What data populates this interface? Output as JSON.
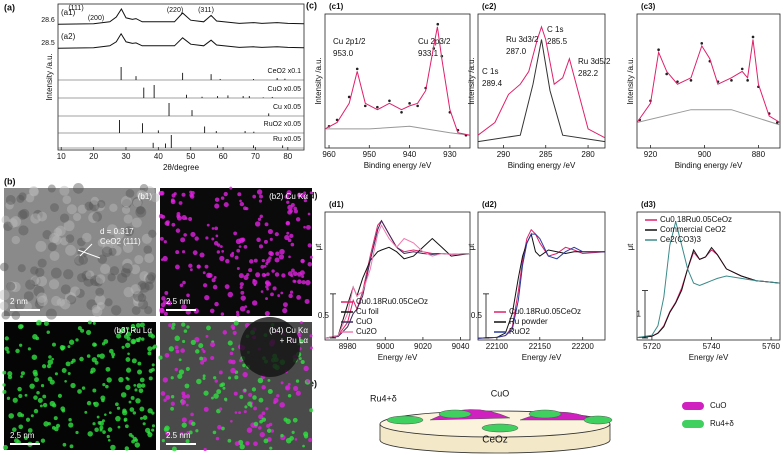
{
  "panel_a": {
    "label": "(a)",
    "xlabel": "2θ/degree",
    "ylabel": "Intensity /a.u.",
    "xlim": [
      9,
      85
    ],
    "xticks": [
      10,
      20,
      30,
      40,
      50,
      60,
      70,
      80
    ],
    "peak_labels": [
      "(111)",
      "28.6",
      "(200)",
      "(220)",
      "(311)",
      "28.5"
    ],
    "curves": [
      {
        "name": "(a1)",
        "x": [
          9,
          20,
          25,
          27,
          28.6,
          30,
          32,
          33.1,
          35,
          45,
          47.5,
          50,
          54,
          56.3,
          58,
          65,
          69.4,
          72,
          76.7,
          80,
          85
        ],
        "values": [
          0.05,
          0.08,
          0.2,
          0.5,
          1.0,
          0.45,
          0.35,
          0.4,
          0.2,
          0.2,
          0.75,
          0.3,
          0.2,
          0.6,
          0.25,
          0.1,
          0.15,
          0.1,
          0.15,
          0.1,
          0.08
        ]
      },
      {
        "name": "(a2)",
        "x": [
          9,
          20,
          25,
          27,
          28.5,
          30,
          32,
          33.1,
          35,
          45,
          47.5,
          50,
          54,
          56.3,
          58,
          65,
          69.4,
          72,
          76.7,
          80,
          85
        ],
        "values": [
          0.05,
          0.08,
          0.2,
          0.45,
          0.95,
          0.45,
          0.35,
          0.38,
          0.2,
          0.2,
          0.7,
          0.3,
          0.2,
          0.55,
          0.25,
          0.1,
          0.14,
          0.1,
          0.14,
          0.1,
          0.08
        ]
      }
    ],
    "references": [
      {
        "name": "CeO2 x0.1",
        "positions": [
          28.5,
          33.1,
          47.5,
          56.3,
          59.1,
          69.4,
          76.7,
          79.1
        ],
        "heights": [
          100,
          30,
          55,
          45,
          8,
          8,
          15,
          10
        ]
      },
      {
        "name": "CuO x0.05",
        "positions": [
          35.5,
          38.7,
          48.7,
          53.5,
          58.3,
          61.5,
          66.2,
          68.1,
          72.4,
          75.2
        ],
        "heights": [
          80,
          100,
          25,
          10,
          15,
          20,
          15,
          15,
          5,
          8
        ]
      },
      {
        "name": "Cu x0.05",
        "positions": [
          43.3,
          50.4,
          74.1
        ],
        "heights": [
          100,
          45,
          20
        ]
      },
      {
        "name": "RuO2 x0.05",
        "positions": [
          28.0,
          35.1,
          40.0,
          54.3,
          57.9,
          66.8,
          69.5
        ],
        "heights": [
          100,
          75,
          20,
          50,
          15,
          15,
          10
        ]
      },
      {
        "name": "Ru x0.05",
        "positions": [
          38.4,
          42.2,
          44.0,
          58.3,
          69.4,
          78.4
        ],
        "heights": [
          40,
          35,
          100,
          20,
          20,
          20
        ]
      }
    ]
  },
  "panel_b": {
    "label": "(b)",
    "d_spacing": "d = 0.317",
    "plane": "CeO2 (111)",
    "images": [
      {
        "label": "(b1)",
        "scale": "2 nm"
      },
      {
        "label": "(b2) Cu Kα",
        "scale": "2.5 nm"
      },
      {
        "label": "(b3) Ru Lα",
        "scale": "2.5 nm"
      },
      {
        "label": "(b4) Cu Kα",
        "label2": "+ Ru Lα",
        "scale": "2.5 nm"
      }
    ]
  },
  "panel_c": {
    "label": "(c)",
    "xlabel": "Binding energy /eV",
    "ylabel": "Intensity /a.u.",
    "plots": [
      {
        "label": "(c1)",
        "xlim": [
          961,
          925
        ],
        "ylim": [
          0,
          1.05
        ],
        "xticks": [
          960,
          950,
          940,
          930
        ],
        "annotations": [
          "Cu 2p1/2",
          "953.0",
          "Cu 2p3/2",
          "933.1"
        ],
        "series": [
          {
            "color": "#999999",
            "style": "line",
            "x": [
              961,
              950,
              940,
              930,
              925
            ],
            "values": [
              0.15,
              0.15,
              0.17,
              0.12,
              0.1
            ]
          },
          {
            "color": "#222222",
            "style": "points",
            "x": [
              960,
              958,
              955,
              953,
              951,
              948,
              945,
              942,
              940,
              938,
              936,
              934,
              933,
              932,
              930,
              928,
              926
            ],
            "values": [
              0.17,
              0.22,
              0.4,
              0.62,
              0.33,
              0.32,
              0.37,
              0.28,
              0.35,
              0.33,
              0.47,
              0.78,
              0.97,
              0.72,
              0.28,
              0.14,
              0.1
            ]
          },
          {
            "color": "#e0206a",
            "style": "line",
            "x": [
              961,
              958,
              955,
              953,
              951,
              948,
              945,
              942,
              940,
              938,
              936,
              934,
              933.1,
              932,
              930,
              928,
              925
            ],
            "values": [
              0.15,
              0.2,
              0.35,
              0.6,
              0.35,
              0.3,
              0.35,
              0.3,
              0.33,
              0.35,
              0.45,
              0.8,
              0.95,
              0.7,
              0.3,
              0.12,
              0.1
            ]
          }
        ]
      },
      {
        "label": "(c2)",
        "xlim": [
          293,
          278
        ],
        "ylim": [
          0,
          1.05
        ],
        "xticks": [
          290,
          285,
          280
        ],
        "annotations": [
          "C 1s",
          "289.4",
          "Ru 3d3/2",
          "287.0",
          "C 1s",
          "285.5",
          "Ru 3d5/2",
          "282.2"
        ],
        "series": [
          {
            "color": "#333333",
            "style": "line",
            "x": [
              293,
              288,
              286.5,
              285.5,
              284.5,
              283,
              278
            ],
            "values": [
              0.05,
              0.1,
              0.5,
              0.85,
              0.45,
              0.1,
              0.05
            ]
          },
          {
            "color": "#e0206a",
            "style": "line",
            "x": [
              293,
              291,
              289.4,
              288,
              287,
              286,
              285.5,
              285,
              284,
              283,
              282.2,
              281,
              280,
              278
            ],
            "values": [
              0.1,
              0.2,
              0.42,
              0.5,
              0.6,
              0.85,
              0.95,
              0.85,
              0.5,
              0.55,
              0.7,
              0.4,
              0.15,
              0.08
            ]
          }
        ]
      },
      {
        "label": "(c3)",
        "xlim": [
          925,
          872
        ],
        "ylim": [
          0,
          1.05
        ],
        "xticks": [
          920,
          900,
          880
        ],
        "series": [
          {
            "color": "#999999",
            "style": "line",
            "x": [
              925,
              905,
              890,
              872
            ],
            "values": [
              0.2,
              0.3,
              0.3,
              0.18
            ]
          },
          {
            "color": "#222222",
            "style": "points",
            "x": [
              924,
              920,
              917,
              914,
              910,
              905,
              901,
              898,
              895,
              890,
              886,
              884,
              882,
              880,
              876,
              873
            ],
            "values": [
              0.22,
              0.37,
              0.77,
              0.58,
              0.52,
              0.53,
              0.82,
              0.68,
              0.52,
              0.53,
              0.62,
              0.53,
              0.87,
              0.48,
              0.27,
              0.2
            ]
          },
          {
            "color": "#e0206a",
            "style": "line",
            "x": [
              925,
              920,
              917,
              914,
              910,
              905,
              901,
              898,
              895,
              890,
              886,
              884,
              882,
              880,
              876,
              872
            ],
            "values": [
              0.2,
              0.35,
              0.75,
              0.6,
              0.5,
              0.55,
              0.8,
              0.7,
              0.5,
              0.55,
              0.6,
              0.55,
              0.85,
              0.5,
              0.25,
              0.2
            ]
          }
        ]
      }
    ]
  },
  "panel_d": {
    "label": "(d)",
    "xlabel": "Energy /eV",
    "ylabel": "μt",
    "plots": [
      {
        "label": "(d1)",
        "xlim": [
          8968,
          9045
        ],
        "ylim": [
          0,
          1.45
        ],
        "xticks": [
          8980,
          9000,
          9020,
          9040
        ],
        "scale_bar": 0.5,
        "series": [
          {
            "name": "Cu0.18Ru0.05CeOz",
            "color": "#e0206a",
            "x": [
              8968,
              8975,
              8980,
              8983,
              8985,
              8988,
              8992,
              8996,
              8998,
              9002,
              9006,
              9010,
              9015,
              9020,
              9025,
              9030,
              9035,
              9045
            ],
            "values": [
              0.02,
              0.05,
              0.2,
              0.45,
              0.35,
              0.55,
              0.95,
              1.3,
              1.35,
              1.2,
              1.05,
              1.0,
              1.02,
              1.0,
              0.98,
              0.98,
              0.97,
              0.98
            ]
          },
          {
            "name": "Cu foil",
            "color": "#111111",
            "x": [
              8968,
              8975,
              8980,
              8983,
              8985,
              8988,
              8992,
              8996,
              8998,
              9002,
              9006,
              9010,
              9015,
              9020,
              9025,
              9030,
              9035,
              9045
            ],
            "values": [
              0.02,
              0.05,
              0.4,
              0.6,
              0.5,
              0.7,
              0.9,
              1.0,
              1.02,
              1.05,
              1.0,
              0.92,
              0.95,
              1.05,
              1.15,
              1.05,
              0.95,
              0.98
            ]
          },
          {
            "name": "CuO",
            "color": "#3a2a5a",
            "x": [
              8968,
              8975,
              8980,
              8983,
              8985,
              8988,
              8992,
              8996,
              8998,
              9002,
              9006,
              9010,
              9015,
              9020,
              9025,
              9030,
              9035,
              9045
            ],
            "values": [
              0.02,
              0.04,
              0.15,
              0.3,
              0.35,
              0.5,
              0.9,
              1.25,
              1.35,
              1.2,
              1.05,
              0.98,
              1.0,
              0.98,
              0.97,
              0.98,
              0.97,
              0.98
            ]
          },
          {
            "name": "Cu2O",
            "color": "#f07ab0",
            "x": [
              8968,
              8975,
              8980,
              8983,
              8985,
              8988,
              8992,
              8996,
              8998,
              9002,
              9006,
              9010,
              9015,
              9020,
              9025,
              9030,
              9035,
              9045
            ],
            "values": [
              0.02,
              0.05,
              0.3,
              0.6,
              0.5,
              0.55,
              0.8,
              1.2,
              1.3,
              1.15,
              1.05,
              1.15,
              1.1,
              1.0,
              0.95,
              0.98,
              0.97,
              0.98
            ]
          }
        ]
      },
      {
        "label": "(d2)",
        "xlim": [
          22078,
          22226
        ],
        "ylim": [
          0,
          1.45
        ],
        "xticks": [
          22100,
          22150,
          22200
        ],
        "scale_bar": 0.5,
        "series": [
          {
            "name": "Cu0.18Ru0.05CeOz",
            "color": "#e0206a",
            "x": [
              22078,
              22100,
              22110,
              22118,
              22125,
              22130,
              22135,
              22140,
              22145,
              22150,
              22160,
              22170,
              22180,
              22190,
              22200,
              22226
            ],
            "values": [
              0.02,
              0.03,
              0.05,
              0.15,
              0.55,
              0.9,
              1.15,
              1.25,
              1.2,
              1.1,
              0.95,
              0.98,
              1.05,
              1.02,
              0.98,
              1.0
            ]
          },
          {
            "name": "Ru powder",
            "color": "#111111",
            "x": [
              22078,
              22100,
              22110,
              22118,
              22125,
              22130,
              22135,
              22140,
              22145,
              22150,
              22160,
              22170,
              22180,
              22190,
              22200,
              22226
            ],
            "values": [
              0.02,
              0.03,
              0.08,
              0.3,
              0.7,
              0.95,
              1.1,
              1.2,
              1.0,
              0.95,
              1.02,
              1.0,
              0.98,
              1.0,
              1.0,
              1.0
            ]
          },
          {
            "name": "RuO2",
            "color": "#2a3a9a",
            "x": [
              22078,
              22100,
              22110,
              22118,
              22125,
              22130,
              22135,
              22140,
              22145,
              22150,
              22160,
              22170,
              22180,
              22190,
              22200,
              22226
            ],
            "values": [
              0.02,
              0.03,
              0.05,
              0.12,
              0.45,
              0.85,
              1.1,
              1.2,
              1.2,
              1.15,
              0.95,
              0.92,
              1.0,
              1.05,
              1.0,
              1.0
            ]
          }
        ]
      },
      {
        "label": "(d3)",
        "xlim": [
          5715,
          5763
        ],
        "ylim": [
          0,
          2.7
        ],
        "xticks": [
          5720,
          5740,
          5760
        ],
        "scale_bar": 1,
        "series": [
          {
            "name": "Cu0.18Ru0.05CeOz",
            "color": "#e0206a",
            "x": [
              5715,
              5720,
              5722,
              5724,
              5726,
              5728,
              5730,
              5732,
              5734,
              5736,
              5738,
              5740,
              5742,
              5745,
              5750,
              5755,
              5763
            ],
            "values": [
              0.05,
              0.08,
              0.15,
              0.3,
              0.6,
              0.8,
              1.1,
              1.5,
              1.85,
              1.7,
              1.75,
              1.9,
              1.8,
              1.5,
              1.35,
              1.25,
              1.2
            ]
          },
          {
            "name": "Commercial CeO2",
            "color": "#111111",
            "x": [
              5715,
              5720,
              5722,
              5724,
              5726,
              5728,
              5730,
              5732,
              5734,
              5736,
              5738,
              5740,
              5742,
              5745,
              5750,
              5755,
              5763
            ],
            "values": [
              0.05,
              0.08,
              0.14,
              0.28,
              0.58,
              0.78,
              1.05,
              1.5,
              1.9,
              1.7,
              1.75,
              1.95,
              1.8,
              1.5,
              1.35,
              1.25,
              1.2
            ]
          },
          {
            "name": "Ce2(CO3)3",
            "color": "#3a8a8a",
            "x": [
              5715,
              5720,
              5722,
              5724,
              5726,
              5728,
              5730,
              5732,
              5734,
              5736,
              5738,
              5740,
              5742,
              5745,
              5750,
              5755,
              5763
            ],
            "values": [
              0.05,
              0.1,
              0.3,
              0.9,
              2.0,
              2.5,
              2.0,
              1.5,
              1.2,
              1.15,
              1.2,
              1.25,
              1.3,
              1.35,
              1.3,
              1.25,
              1.2
            ]
          }
        ]
      }
    ]
  },
  "panel_e": {
    "label": "(e)",
    "support": "CeOz",
    "cuo": "CuO",
    "ru": "Ru4+δ",
    "legend": [
      "CuO",
      "Ru4+δ"
    ]
  }
}
